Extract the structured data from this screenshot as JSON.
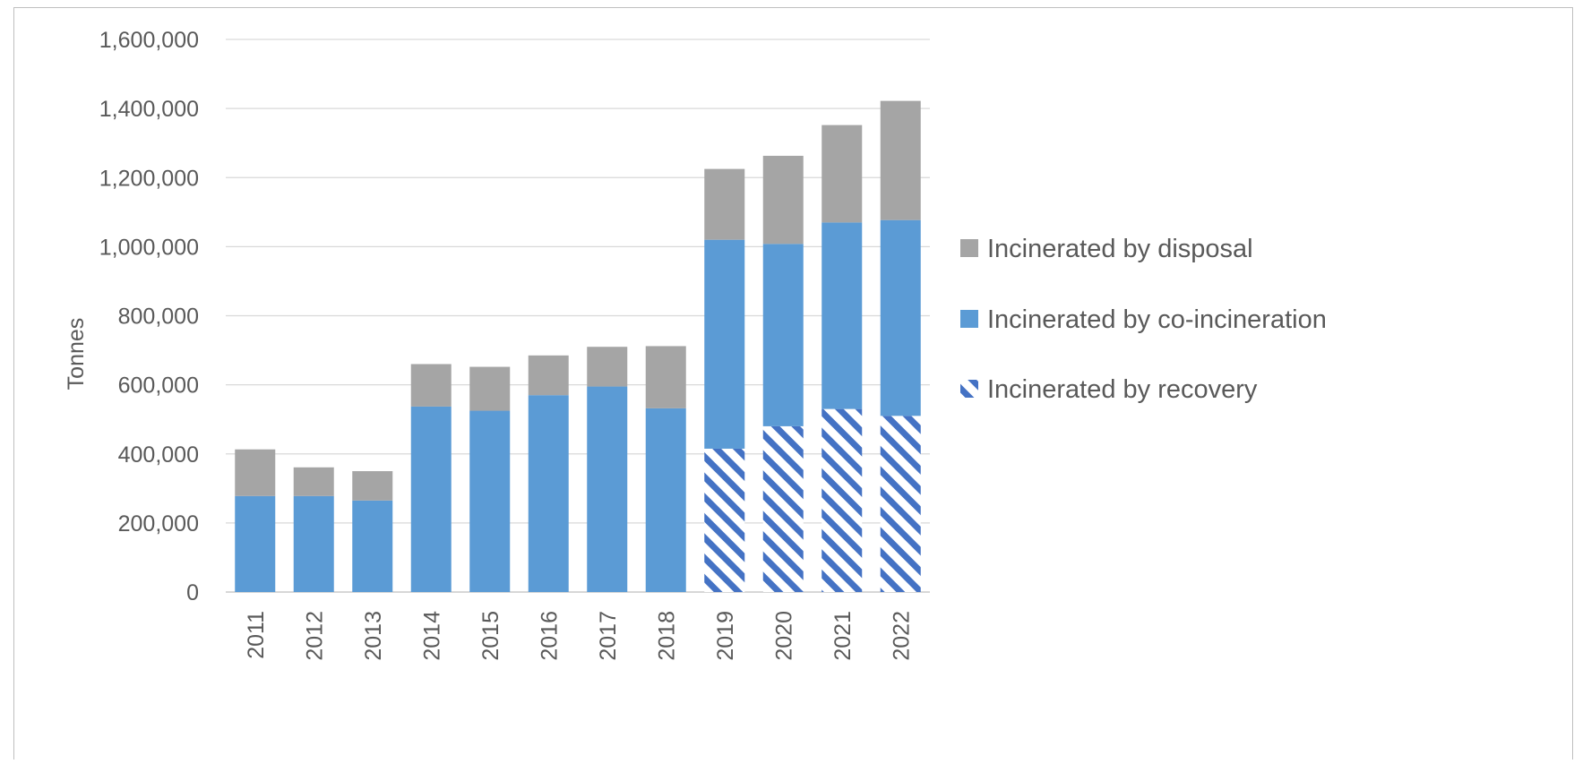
{
  "chart_data": {
    "type": "bar",
    "stacked": true,
    "title": "",
    "xlabel": "",
    "ylabel": "Tonnes",
    "ylim": [
      0,
      1600000
    ],
    "yticks": [
      "0",
      "200,000",
      "400,000",
      "600,000",
      "800,000",
      "1,000,000",
      "1,200,000",
      "1,400,000",
      "1,600,000"
    ],
    "ytick_values": [
      0,
      200000,
      400000,
      600000,
      800000,
      1000000,
      1200000,
      1400000,
      1600000
    ],
    "grid": true,
    "legend_position": "right",
    "categories": [
      "2011",
      "2012",
      "2013",
      "2014",
      "2015",
      "2016",
      "2017",
      "2018",
      "2019",
      "2020",
      "2021",
      "2022"
    ],
    "series": [
      {
        "name": "Incinerated by recovery",
        "color": "#4472C4",
        "pattern": "diagonal-stripes",
        "values": [
          0,
          0,
          0,
          0,
          0,
          0,
          0,
          0,
          415000,
          480000,
          530000,
          510000
        ]
      },
      {
        "name": "Incinerated by co-incineration",
        "color": "#5B9BD5",
        "values": [
          278000,
          278000,
          265000,
          537000,
          525000,
          570000,
          595000,
          532000,
          605000,
          528000,
          540000,
          567000
        ]
      },
      {
        "name": "Incinerated by disposal",
        "color": "#A5A5A5",
        "values": [
          135000,
          83000,
          85000,
          123000,
          127000,
          115000,
          115000,
          180000,
          205000,
          255000,
          282000,
          345000
        ]
      }
    ],
    "legend_order": [
      "Incinerated by disposal",
      "Incinerated by co-incineration",
      "Incinerated by recovery"
    ]
  }
}
